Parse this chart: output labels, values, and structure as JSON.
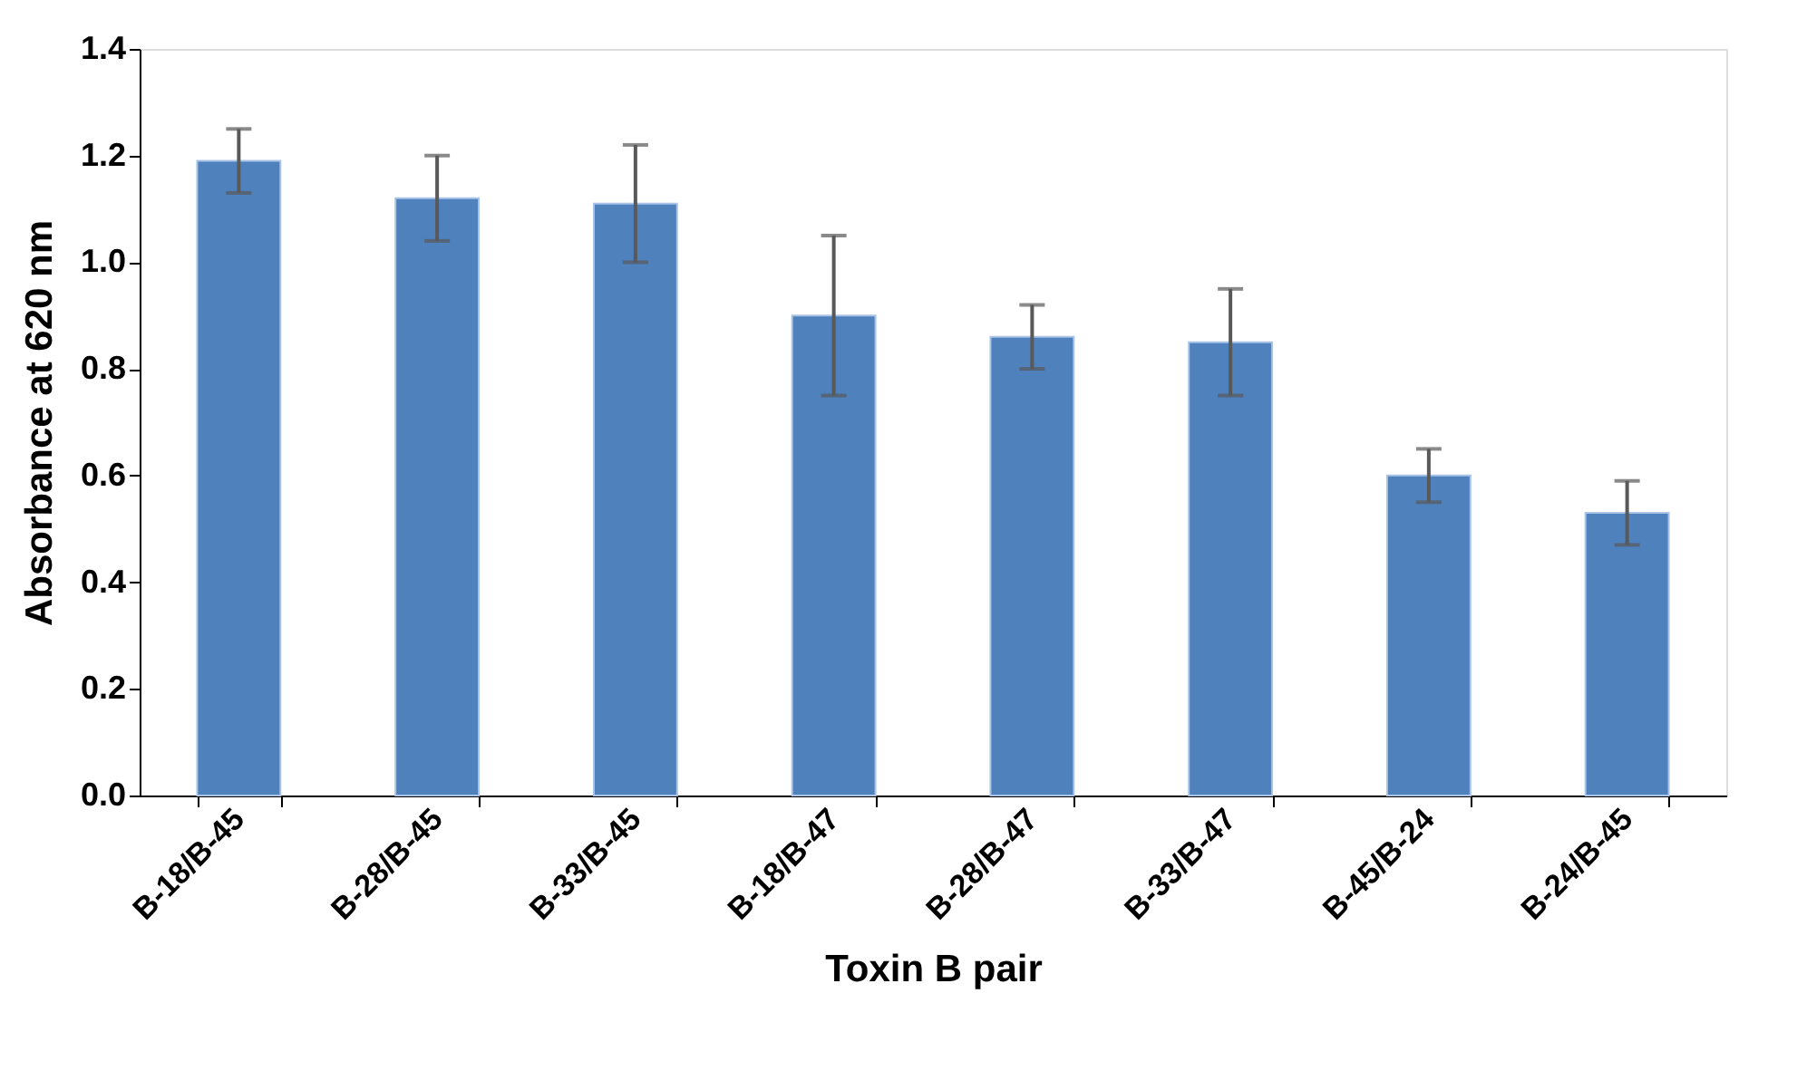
{
  "chart_data": {
    "type": "bar",
    "xlabel": "Toxin B pair",
    "ylabel": "Absorbance at 620 nm",
    "categories": [
      "B-18/B-45",
      "B-28/B-45",
      "B-33/B-45",
      "B-18/B-47",
      "B-28/B-47",
      "B-33/B-47",
      "B-45/B-24",
      "B-24/B-45"
    ],
    "values": [
      1.19,
      1.12,
      1.11,
      0.9,
      0.86,
      0.85,
      0.6,
      0.53
    ],
    "errors": [
      0.06,
      0.08,
      0.11,
      0.15,
      0.06,
      0.1,
      0.05,
      0.06
    ],
    "color": "#4f81bd",
    "ylim": [
      0,
      1.4
    ],
    "yticks": [
      {
        "value": 0,
        "label": "0.0"
      },
      0.2,
      0.4,
      0.6,
      0.8,
      {
        "value": 1,
        "label": "1.0"
      },
      1.2,
      1.4
    ],
    "grid": false
  }
}
